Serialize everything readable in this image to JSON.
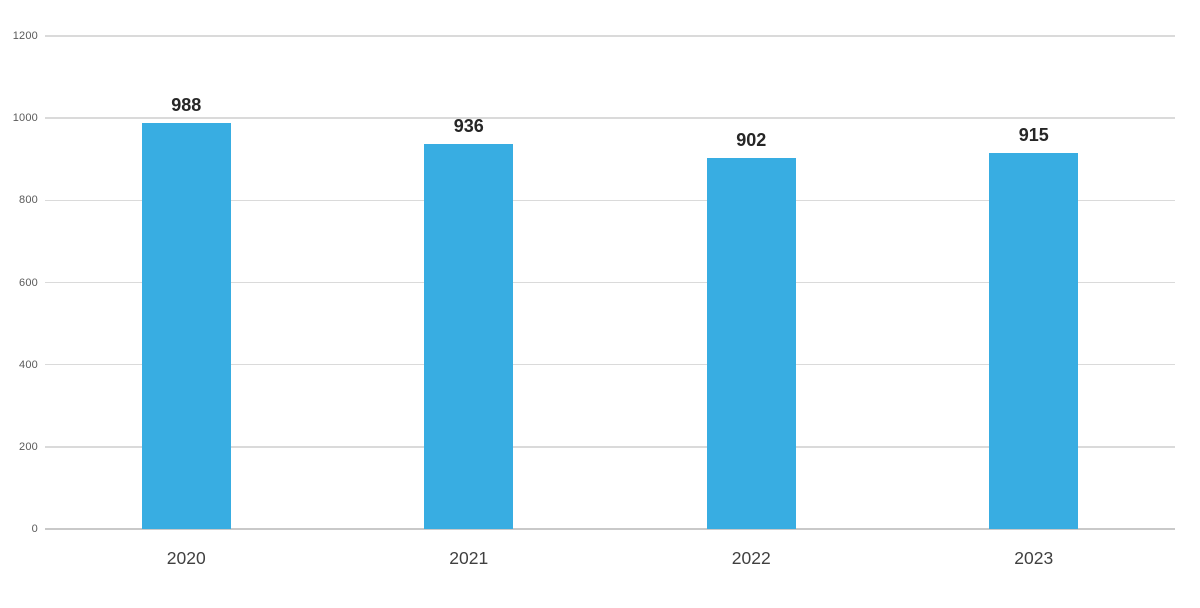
{
  "chart_data": {
    "type": "bar",
    "categories": [
      "2020",
      "2021",
      "2022",
      "2023"
    ],
    "values": [
      988,
      936,
      902,
      915
    ],
    "title": "",
    "xlabel": "",
    "ylabel": "",
    "ylim": [
      0,
      1200
    ],
    "ytick_step": 200,
    "ytick_labels": [
      "0",
      "200",
      "400",
      "600",
      "800",
      "1000",
      "1200"
    ],
    "grid": true,
    "legend": false,
    "data_labels": true,
    "colors": {
      "bar": "#38ade2",
      "gridline": "#dadada",
      "axis_line": "#c9c9c9",
      "tick_label": "#5a5a5a",
      "category_label": "#404040",
      "value_label": "#262626",
      "background": "#ffffff"
    }
  }
}
